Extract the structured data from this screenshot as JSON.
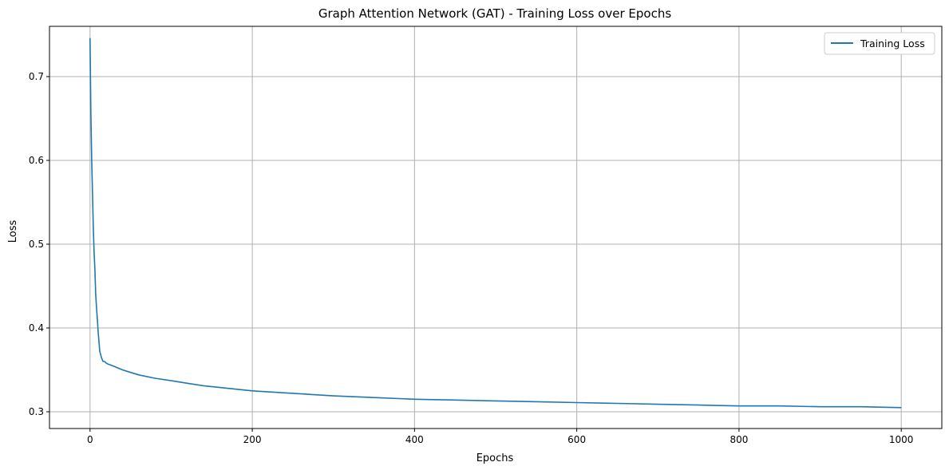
{
  "chart_data": {
    "type": "line",
    "title": "Graph Attention Network (GAT) - Training Loss over Epochs",
    "xlabel": "Epochs",
    "ylabel": "Loss",
    "xlim": [
      -50,
      1050
    ],
    "ylim": [
      0.28,
      0.76
    ],
    "xticks": [
      0,
      200,
      400,
      600,
      800,
      1000
    ],
    "xtick_labels": [
      "0",
      "200",
      "400",
      "600",
      "800",
      "1000"
    ],
    "yticks": [
      0.3,
      0.4,
      0.5,
      0.6,
      0.7
    ],
    "ytick_labels": [
      "0.3",
      "0.4",
      "0.5",
      "0.6",
      "0.7"
    ],
    "grid": true,
    "legend_position": "top-right",
    "series": [
      {
        "name": "Training Loss",
        "color": "#1f77b4",
        "x": [
          0,
          1,
          2,
          3,
          4,
          5,
          6,
          7,
          8,
          9,
          10,
          12,
          14,
          16,
          18,
          20,
          22,
          25,
          30,
          35,
          40,
          50,
          60,
          80,
          100,
          120,
          140,
          160,
          180,
          200,
          250,
          300,
          350,
          400,
          450,
          500,
          550,
          600,
          650,
          700,
          750,
          800,
          850,
          900,
          950,
          1000
        ],
        "values": [
          0.746,
          0.66,
          0.6,
          0.56,
          0.52,
          0.49,
          0.47,
          0.44,
          0.425,
          0.41,
          0.395,
          0.372,
          0.365,
          0.36,
          0.36,
          0.358,
          0.357,
          0.356,
          0.354,
          0.352,
          0.35,
          0.347,
          0.344,
          0.34,
          0.337,
          0.334,
          0.331,
          0.329,
          0.327,
          0.325,
          0.322,
          0.319,
          0.317,
          0.315,
          0.314,
          0.313,
          0.312,
          0.311,
          0.31,
          0.309,
          0.308,
          0.307,
          0.307,
          0.306,
          0.306,
          0.305
        ]
      }
    ]
  }
}
